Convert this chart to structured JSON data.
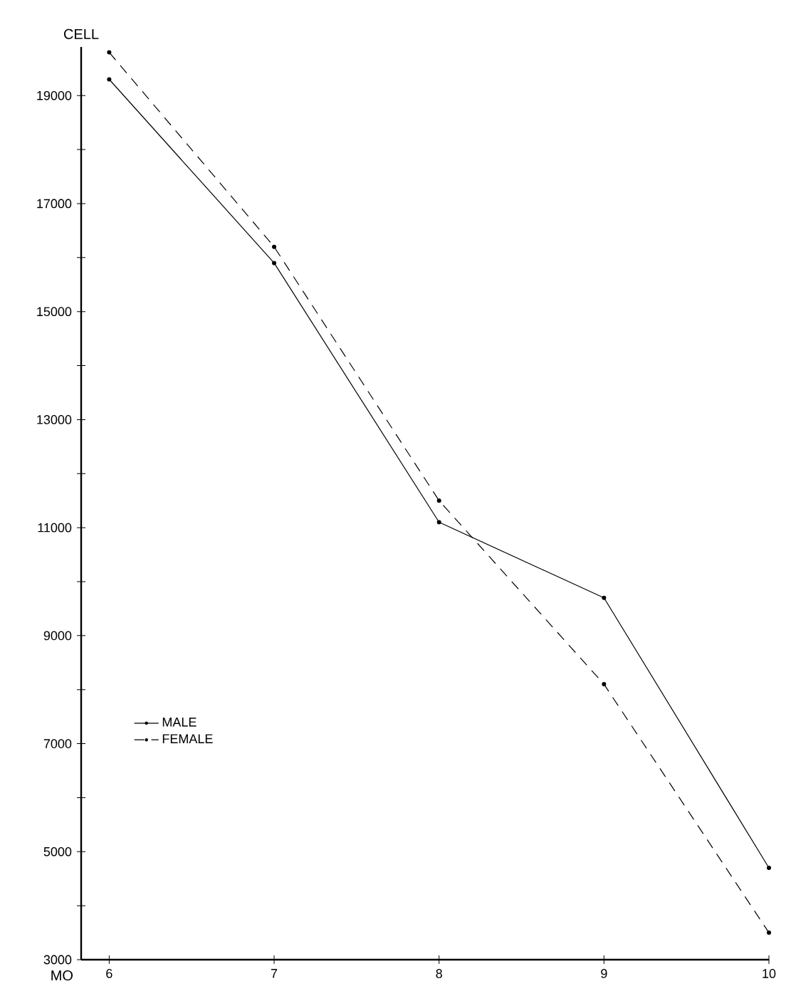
{
  "chart_data": {
    "type": "line",
    "xlabel": "MO",
    "ylabel": "CELL",
    "x": [
      6,
      7,
      8,
      9,
      10
    ],
    "series": [
      {
        "name": "MALE",
        "color": "#000000",
        "line_style": "solid",
        "values": [
          19300,
          15900,
          11100,
          9700,
          4700
        ]
      },
      {
        "name": "FEMALE",
        "color": "#000000",
        "line_style": "dashed",
        "values": [
          19800,
          16200,
          11500,
          8100,
          3500
        ]
      }
    ],
    "xlim": [
      5.83,
      10
    ],
    "ylim": [
      3000,
      19900
    ],
    "xticks": [
      6,
      7,
      8,
      9,
      10
    ],
    "yticks": [
      3000,
      {
        "value": 4000,
        "label": null
      },
      5000,
      {
        "value": 6000,
        "label": null
      },
      7000,
      {
        "value": 8000,
        "label": null
      },
      9000,
      {
        "value": 10000,
        "label": null
      },
      11000,
      {
        "value": 12000,
        "label": null
      },
      13000,
      {
        "value": 14000,
        "label": null
      },
      15000,
      {
        "value": 16000,
        "label": null
      },
      17000,
      {
        "value": 18000,
        "label": null
      },
      19000
    ],
    "grid": false,
    "legend": "left",
    "marker": "circle"
  }
}
